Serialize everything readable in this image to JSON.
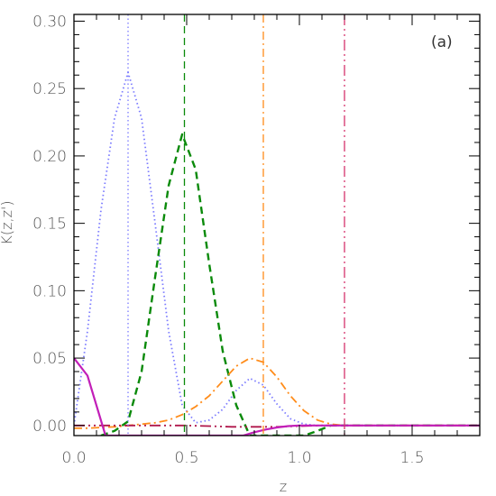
{
  "chart_data": {
    "type": "line",
    "panel_label": "(a)",
    "xlabel": "z",
    "ylabel": "K(z,z')",
    "xlim": [
      0.0,
      1.8
    ],
    "ylim": [
      -0.0075,
      0.305
    ],
    "xticks": [
      "0.0",
      "0.5",
      "1.0",
      "1.5"
    ],
    "xtick_values": [
      0.0,
      0.5,
      1.0,
      1.5
    ],
    "yticks": [
      "0.00",
      "0.05",
      "0.10",
      "0.15",
      "0.20",
      "0.25",
      "0.30"
    ],
    "ytick_values": [
      0.0,
      0.05,
      0.1,
      0.15,
      0.2,
      0.25,
      0.3
    ],
    "vertical_lines": [
      {
        "x": 0.24,
        "color": "#7b7bff",
        "style": "dotted"
      },
      {
        "x": 0.49,
        "color": "#0a8a0a",
        "style": "dashed"
      },
      {
        "x": 0.84,
        "color": "#ff8c1a",
        "style": "dashdot"
      },
      {
        "x": 1.2,
        "color": "#d6336c",
        "style": "dashdotdot"
      }
    ],
    "series": [
      {
        "color": "#7b7bff",
        "style": "dotted",
        "x": [
          0.0,
          0.06,
          0.12,
          0.18,
          0.24,
          0.3,
          0.36,
          0.42,
          0.48,
          0.54,
          0.6,
          0.66,
          0.72,
          0.78,
          0.84,
          0.9,
          0.96,
          1.02,
          1.08,
          1.14,
          1.2,
          1.3,
          1.4,
          1.5,
          1.6,
          1.7,
          1.8
        ],
        "y": [
          0.0,
          0.07,
          0.16,
          0.228,
          0.262,
          0.228,
          0.15,
          0.07,
          0.015,
          0.002,
          0.004,
          0.012,
          0.026,
          0.035,
          0.03,
          0.016,
          0.005,
          0.001,
          0.0,
          0.0,
          0.0,
          0.0,
          0.0,
          0.0,
          0.0,
          0.0,
          0.0
        ]
      },
      {
        "color": "#0a8a0a",
        "style": "dashed",
        "x": [
          0.12,
          0.18,
          0.24,
          0.3,
          0.36,
          0.42,
          0.48,
          0.54,
          0.6,
          0.66,
          0.72,
          0.78,
          0.84,
          0.9,
          0.96,
          1.02,
          1.08,
          1.14,
          1.2,
          1.3,
          1.4,
          1.5,
          1.6,
          1.7,
          1.8
        ],
        "y": [
          -0.0075,
          -0.004,
          0.003,
          0.04,
          0.11,
          0.178,
          0.216,
          0.19,
          0.12,
          0.055,
          0.015,
          -0.0075,
          -0.0075,
          -0.0075,
          -0.0075,
          -0.0075,
          -0.004,
          0.0,
          0.0,
          0.0,
          0.0,
          0.0,
          0.0,
          0.0,
          0.0
        ]
      },
      {
        "color": "#ff8c1a",
        "style": "dashdot",
        "x": [
          0.0,
          0.06,
          0.12,
          0.18,
          0.24,
          0.3,
          0.36,
          0.42,
          0.48,
          0.54,
          0.6,
          0.66,
          0.72,
          0.78,
          0.84,
          0.9,
          0.96,
          1.02,
          1.08,
          1.14,
          1.2,
          1.3,
          1.4,
          1.5,
          1.6,
          1.7,
          1.8
        ],
        "y": [
          -0.002,
          -0.002,
          -0.0015,
          -0.001,
          0.0,
          0.001,
          0.002,
          0.004,
          0.008,
          0.014,
          0.022,
          0.033,
          0.044,
          0.05,
          0.047,
          0.036,
          0.022,
          0.011,
          0.004,
          0.001,
          0.0,
          0.0,
          0.0,
          0.0,
          0.0,
          0.0,
          0.0
        ]
      },
      {
        "color": "#b0174b",
        "style": "dashdotdot",
        "x": [
          0.0,
          0.1,
          0.2,
          0.3,
          0.4,
          0.5,
          0.6,
          0.7,
          0.8,
          0.9,
          1.0,
          1.1,
          1.2,
          1.3,
          1.4,
          1.5,
          1.6,
          1.7,
          1.8
        ],
        "y": [
          0.0,
          0.0,
          0.0,
          0.0,
          0.0,
          0.0,
          -0.0005,
          -0.001,
          -0.001,
          -0.001,
          -0.0005,
          0.0,
          0.0,
          0.0,
          0.0,
          0.0,
          0.0,
          0.0,
          0.0
        ]
      },
      {
        "color": "#c21fb8",
        "style": "solid",
        "x": [
          0.0,
          0.06,
          0.14,
          0.18,
          0.3,
          0.5,
          0.7,
          0.75,
          0.8,
          0.85,
          0.9,
          0.95,
          1.0,
          1.05,
          1.1,
          1.2,
          1.4,
          1.6,
          1.8
        ],
        "y": [
          0.05,
          0.037,
          -0.0075,
          -0.0075,
          -0.0075,
          -0.0075,
          -0.0075,
          -0.0075,
          -0.005,
          -0.003,
          -0.0015,
          -0.0005,
          0.0,
          0.0,
          0.0,
          0.0,
          0.0,
          0.0,
          0.0
        ]
      }
    ]
  }
}
